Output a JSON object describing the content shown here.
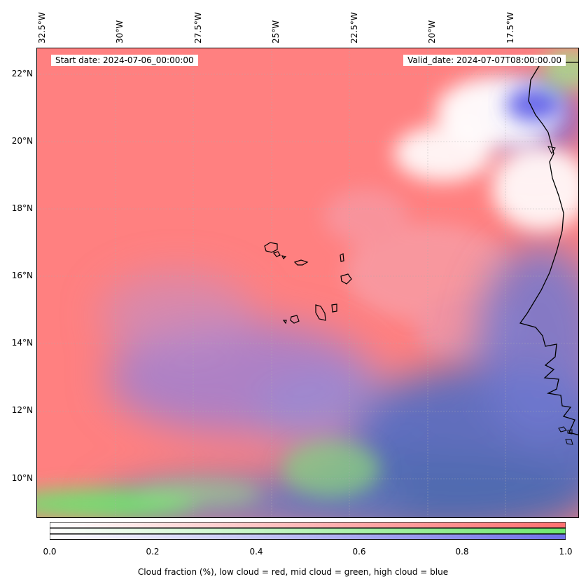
{
  "map": {
    "start_date_label": "Start date: 2024-07-06_00:00:00",
    "valid_date_label": "Valid_date: 2024-07-07T08:00:00.00",
    "longitude_labels": [
      "32.5°W",
      "30°W",
      "27.5°W",
      "25°W",
      "22.5°W",
      "20°W",
      "17.5°W"
    ],
    "latitude_labels": [
      "22°N",
      "20°N",
      "18°N",
      "16°N",
      "14°N",
      "12°N",
      "10°N"
    ],
    "colors": {
      "low_cloud": "#ff8080",
      "mid_cloud": "#80ff80",
      "high_cloud": "#8080ff",
      "coastline": "#000000"
    }
  },
  "colorbar": {
    "ticks": [
      "0.0",
      "0.2",
      "0.4",
      "0.6",
      "0.8",
      "1.0"
    ],
    "caption": "Cloud fraction (%), low cloud = red, mid cloud = green, high cloud = blue",
    "range": [
      0.0,
      1.0
    ]
  }
}
